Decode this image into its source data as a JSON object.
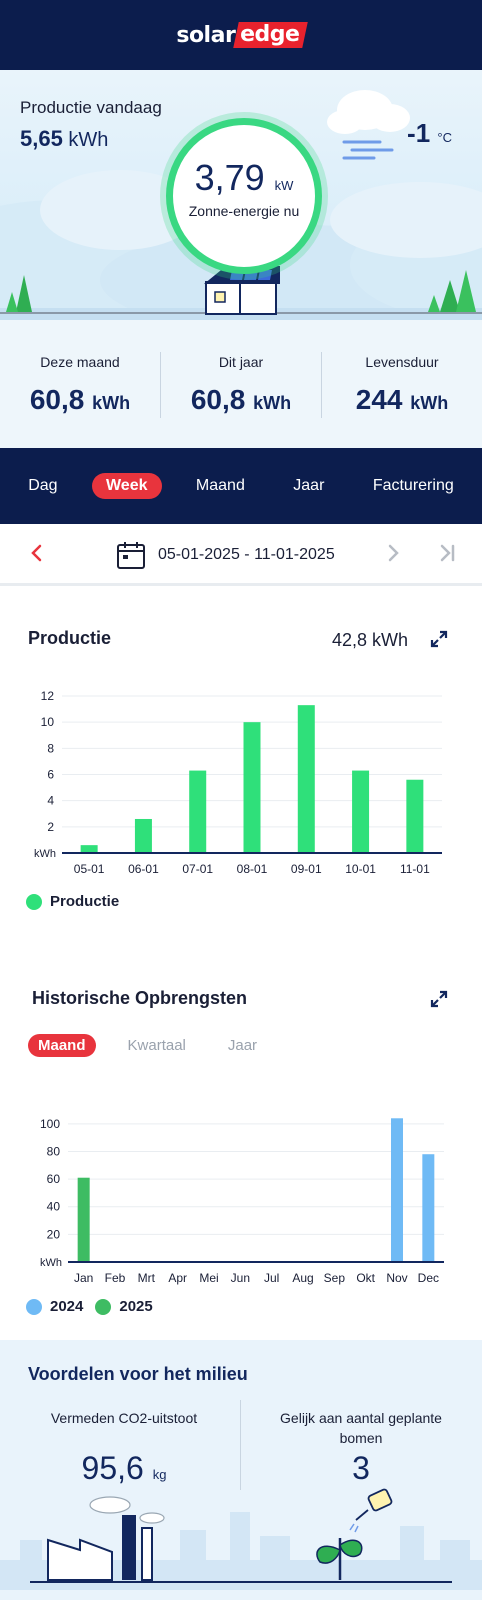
{
  "brand": {
    "logo_solar": "solar",
    "logo_edge": "edge"
  },
  "hero": {
    "production_label": "Productie vandaag",
    "production_value": "5,65",
    "production_unit": "kWh",
    "current_power_value": "3,79",
    "current_power_unit": "kW",
    "current_power_label": "Zonne-energie nu",
    "temperature_value": "-1",
    "temperature_unit": "°C",
    "weather_icon": "cloud-fog-icon"
  },
  "summary": [
    {
      "label": "Deze maand",
      "value": "60,8",
      "unit": "kWh"
    },
    {
      "label": "Dit jaar",
      "value": "60,8",
      "unit": "kWh"
    },
    {
      "label": "Levensduur",
      "value": "244",
      "unit": "kWh"
    }
  ],
  "tabs": [
    "Dag",
    "Week",
    "Maand",
    "Jaar",
    "Facturering"
  ],
  "active_tab": "Week",
  "date_range": "05-01-2025 - 11-01-2025",
  "production": {
    "title": "Productie",
    "total": "42,8 kWh",
    "legend": "Productie",
    "color": "#2fe07a"
  },
  "historical": {
    "title": "Historische Opbrengsten",
    "subtabs": [
      "Maand",
      "Kwartaal",
      "Jaar"
    ],
    "active_subtab": "Maand",
    "legend": [
      {
        "label": "2024",
        "color": "#6fbaf5"
      },
      {
        "label": "2025",
        "color": "#3ebc63"
      }
    ]
  },
  "environment": {
    "title": "Voordelen voor het milieu",
    "co2_label": "Vermeden CO2-uitstoot",
    "co2_value": "95,6",
    "co2_unit": "kg",
    "trees_label_line1": "Gelijk aan aantal geplante",
    "trees_label_line2": "bomen",
    "trees_value": "3"
  },
  "chart_data": [
    {
      "type": "bar",
      "title": "Productie",
      "categories": [
        "05-01",
        "06-01",
        "07-01",
        "08-01",
        "09-01",
        "10-01",
        "11-01"
      ],
      "series": [
        {
          "name": "Productie",
          "values": [
            0.6,
            2.6,
            6.3,
            10.0,
            11.3,
            6.3,
            5.6
          ]
        }
      ],
      "ylabel": "kWh",
      "yticks": [
        2,
        4,
        6,
        8,
        10,
        12
      ],
      "ylim": [
        0,
        12
      ],
      "color": "#2fe07a",
      "grid": true,
      "legend_position": "bottom-left"
    },
    {
      "type": "bar",
      "title": "Historische Opbrengsten",
      "categories": [
        "Jan",
        "Feb",
        "Mrt",
        "Apr",
        "Mei",
        "Jun",
        "Jul",
        "Aug",
        "Sep",
        "Okt",
        "Nov",
        "Dec"
      ],
      "series": [
        {
          "name": "2024",
          "values": [
            0,
            0,
            0,
            0,
            0,
            0,
            0,
            0,
            0,
            0,
            104,
            78
          ],
          "color": "#6fbaf5"
        },
        {
          "name": "2025",
          "values": [
            61,
            0,
            0,
            0,
            0,
            0,
            0,
            0,
            0,
            0,
            0,
            0
          ],
          "color": "#3ebc63"
        }
      ],
      "ylabel": "kWh",
      "yticks": [
        20,
        40,
        60,
        80,
        100
      ],
      "ylim": [
        0,
        110
      ],
      "grid": true,
      "legend_position": "bottom-left"
    }
  ]
}
